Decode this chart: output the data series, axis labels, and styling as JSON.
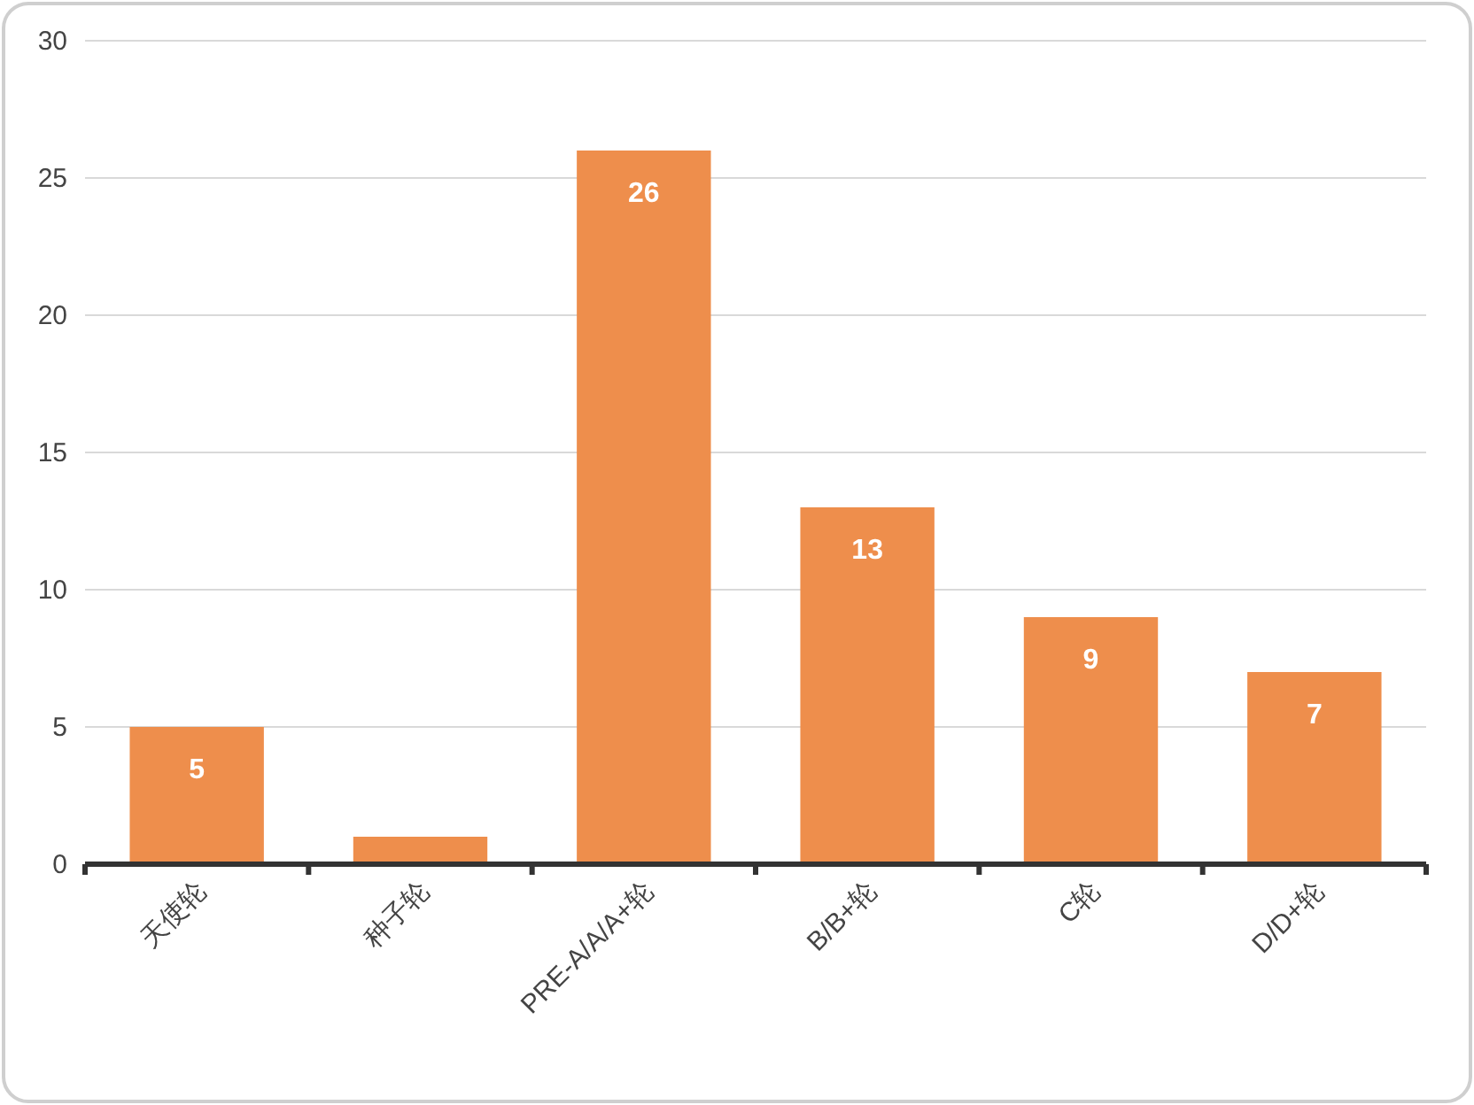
{
  "chart_data": {
    "type": "bar",
    "categories": [
      "天使轮",
      "种子轮",
      "PRE-A/A/A+轮",
      "B/B+轮",
      "C轮",
      "D/D+轮"
    ],
    "series": [
      {
        "color": "#ee8e4c",
        "values": [
          5,
          1,
          26,
          13,
          9,
          7
        ],
        "value_labels": [
          "5",
          null,
          "26",
          "13",
          "9",
          "7"
        ]
      }
    ],
    "ylim": [
      0,
      30
    ],
    "yticks": [
      0,
      5,
      10,
      15,
      20,
      25,
      30
    ],
    "grid": "y"
  }
}
